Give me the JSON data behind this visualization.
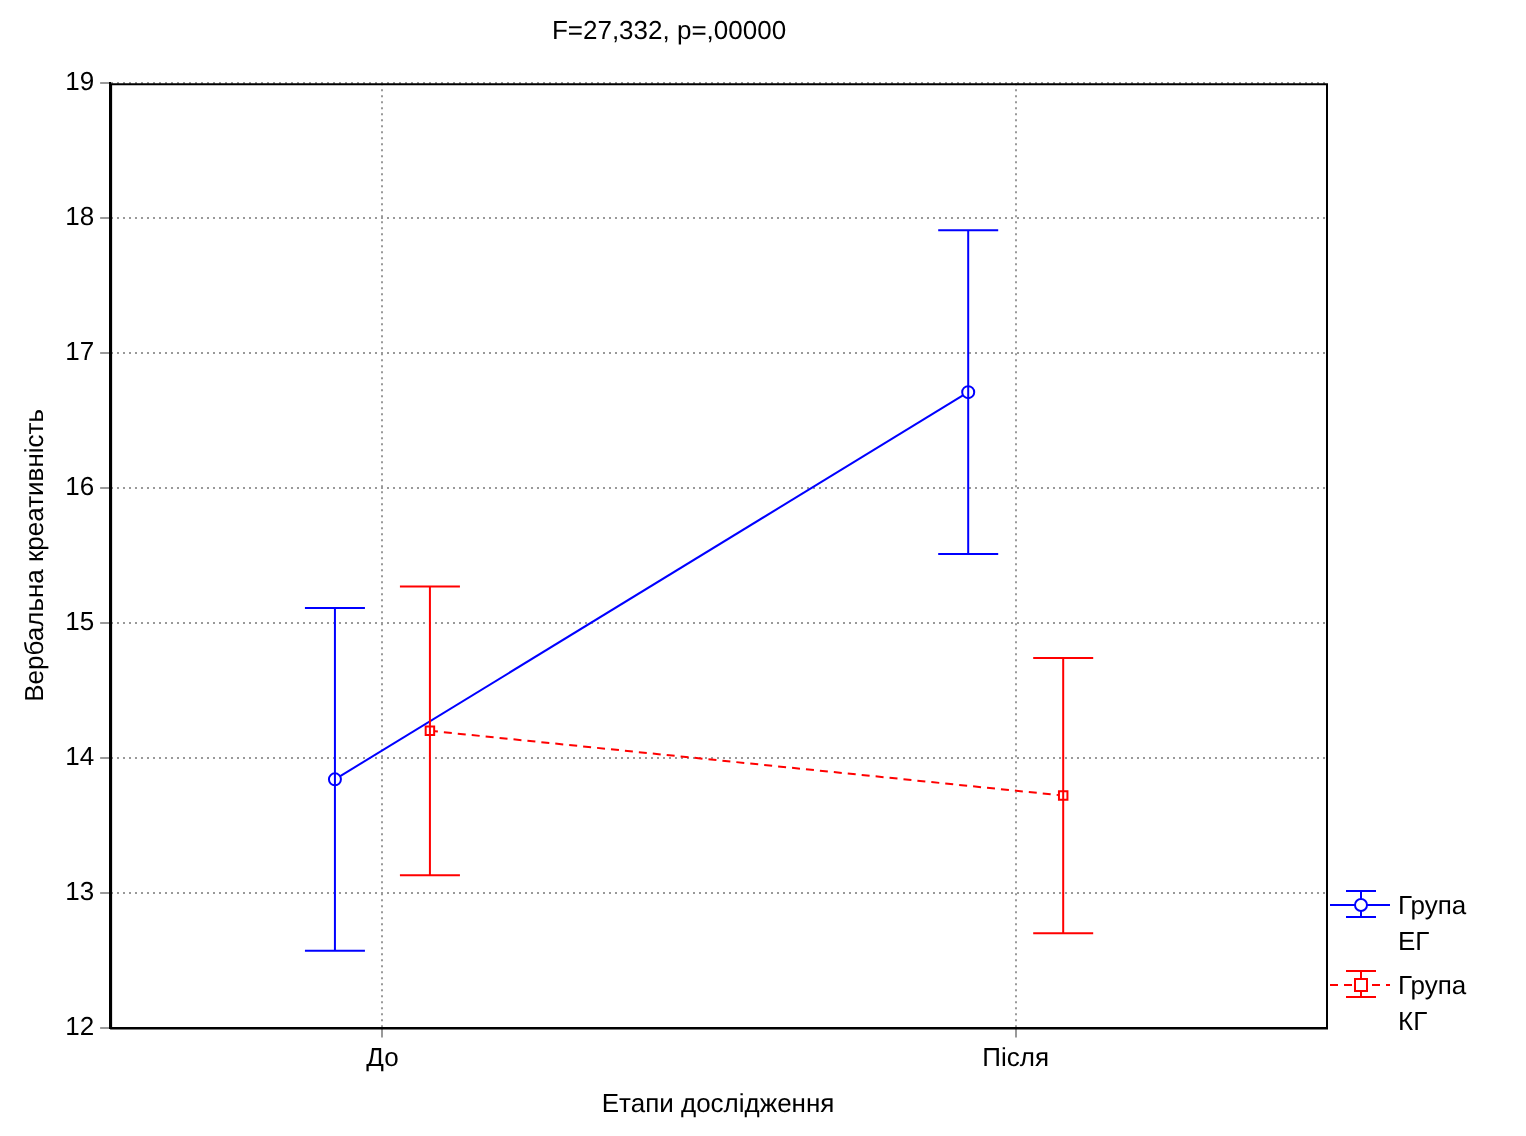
{
  "chart_data": {
    "type": "line",
    "title": "F=27,332, p=,00000",
    "xlabel": "Етапи дослідження",
    "ylabel": "Вербальна креативність",
    "categories": [
      "До",
      "Після"
    ],
    "series": [
      {
        "name": "Група ЕГ",
        "color": "#0000ff",
        "values": [
          13.84,
          16.71
        ],
        "errors": [
          1.27,
          1.2
        ],
        "marker": "circle",
        "line_style": "solid"
      },
      {
        "name": "Група КГ",
        "color": "#ff0000",
        "values": [
          14.2,
          13.72
        ],
        "errors": [
          1.07,
          1.02
        ],
        "marker": "square",
        "line_style": "dashed"
      }
    ],
    "ylim": [
      12,
      19
    ],
    "yticks": [
      12,
      13,
      14,
      15,
      16,
      17,
      18,
      19
    ],
    "grid": true,
    "legend": "bottom right"
  }
}
